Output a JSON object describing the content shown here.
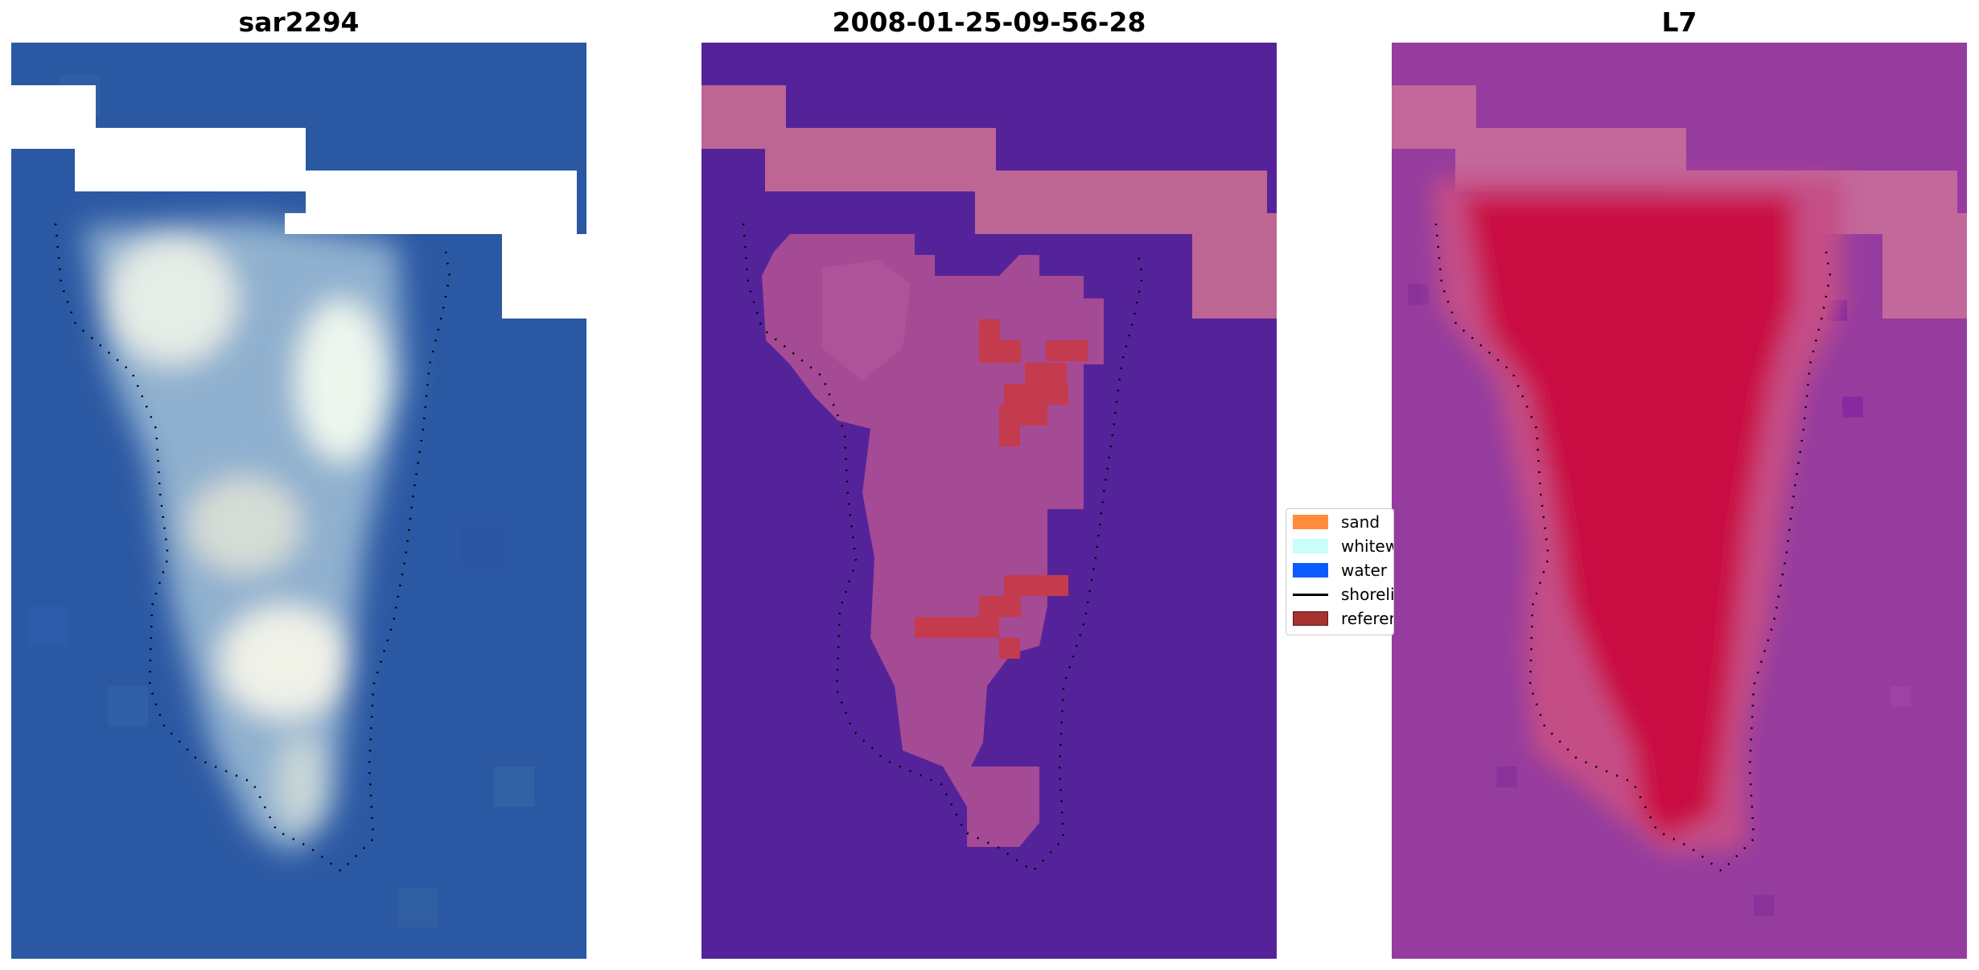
{
  "panels": [
    {
      "title": "sar2294",
      "content": "satellite RGB image of a sandbar with white surf"
    },
    {
      "title": "2008-01-25-09-56-28",
      "content": "classified image overlay"
    },
    {
      "title": "L7",
      "content": "probability / classification overlay"
    }
  ],
  "legend": {
    "items": [
      {
        "label": "sand",
        "color": "#ff8c3a",
        "kind": "patch"
      },
      {
        "label": "whitewater",
        "color": "#c8fffa",
        "kind": "patch"
      },
      {
        "label": "water",
        "color": "#0a5cff",
        "kind": "patch"
      },
      {
        "label": "shoreline",
        "color": "#000000",
        "kind": "line"
      },
      {
        "label": "reference",
        "color": "#a83232",
        "kind": "patch"
      }
    ]
  },
  "colors": {
    "water_rgb": "#2b58a3",
    "panel2_background": "#552399",
    "panel2_cloud": "#bd6593",
    "panel2_sand": "#c43b4e",
    "panel3_background": "#963c9e",
    "panel3_core": "#c90f42"
  }
}
